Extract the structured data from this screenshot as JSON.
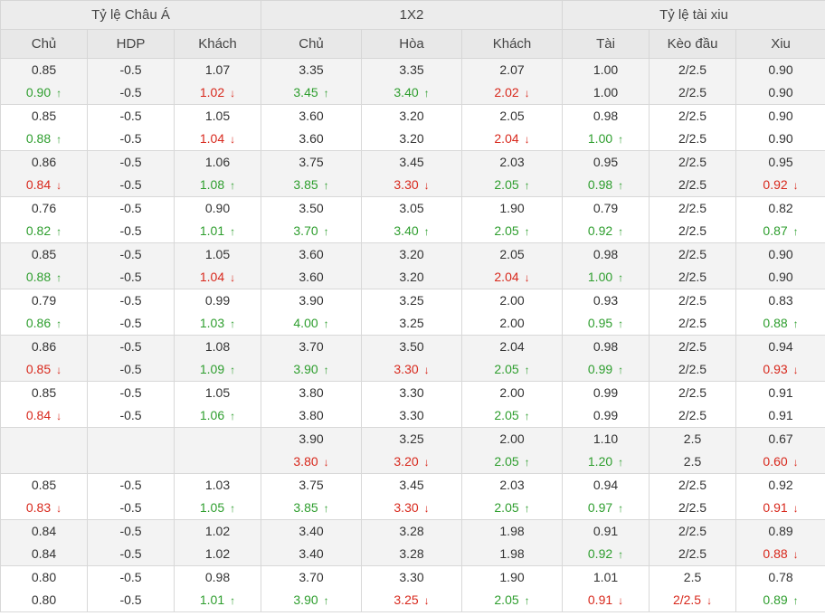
{
  "header": {
    "groups": [
      "Tỷ lệ Châu Á",
      "1X2",
      "Tỷ lệ tài xiu"
    ],
    "columns": [
      "Chủ",
      "HDP",
      "Khách",
      "Chủ",
      "Hòa",
      "Khách",
      "Tài",
      "Kèo đầu",
      "Xiu"
    ]
  },
  "arrows": {
    "up": "↑",
    "down": "↓"
  },
  "colors": {
    "up": "#2e9e2e",
    "down": "#d8281c",
    "header_bg": "#ececec",
    "alt_row_bg": "#f3f3f3"
  },
  "rows": [
    {
      "cells": [
        {
          "top": "0.85",
          "bottom": "0.90",
          "trend": "up"
        },
        {
          "top": "-0.5",
          "bottom": "-0.5"
        },
        {
          "top": "1.07",
          "bottom": "1.02",
          "trend": "down"
        },
        {
          "top": "3.35",
          "bottom": "3.45",
          "trend": "up"
        },
        {
          "top": "3.35",
          "bottom": "3.40",
          "trend": "up"
        },
        {
          "top": "2.07",
          "bottom": "2.02",
          "trend": "down"
        },
        {
          "top": "1.00",
          "bottom": "1.00"
        },
        {
          "top": "2/2.5",
          "bottom": "2/2.5"
        },
        {
          "top": "0.90",
          "bottom": "0.90"
        }
      ]
    },
    {
      "cells": [
        {
          "top": "0.85",
          "bottom": "0.88",
          "trend": "up"
        },
        {
          "top": "-0.5",
          "bottom": "-0.5"
        },
        {
          "top": "1.05",
          "bottom": "1.04",
          "trend": "down"
        },
        {
          "top": "3.60",
          "bottom": "3.60"
        },
        {
          "top": "3.20",
          "bottom": "3.20"
        },
        {
          "top": "2.05",
          "bottom": "2.04",
          "trend": "down"
        },
        {
          "top": "0.98",
          "bottom": "1.00",
          "trend": "up"
        },
        {
          "top": "2/2.5",
          "bottom": "2/2.5"
        },
        {
          "top": "0.90",
          "bottom": "0.90"
        }
      ]
    },
    {
      "cells": [
        {
          "top": "0.86",
          "bottom": "0.84",
          "trend": "down"
        },
        {
          "top": "-0.5",
          "bottom": "-0.5"
        },
        {
          "top": "1.06",
          "bottom": "1.08",
          "trend": "up"
        },
        {
          "top": "3.75",
          "bottom": "3.85",
          "trend": "up"
        },
        {
          "top": "3.45",
          "bottom": "3.30",
          "trend": "down"
        },
        {
          "top": "2.03",
          "bottom": "2.05",
          "trend": "up"
        },
        {
          "top": "0.95",
          "bottom": "0.98",
          "trend": "up"
        },
        {
          "top": "2/2.5",
          "bottom": "2/2.5"
        },
        {
          "top": "0.95",
          "bottom": "0.92",
          "trend": "down"
        }
      ]
    },
    {
      "cells": [
        {
          "top": "0.76",
          "bottom": "0.82",
          "trend": "up"
        },
        {
          "top": "-0.5",
          "bottom": "-0.5"
        },
        {
          "top": "0.90",
          "bottom": "1.01",
          "trend": "up"
        },
        {
          "top": "3.50",
          "bottom": "3.70",
          "trend": "up"
        },
        {
          "top": "3.05",
          "bottom": "3.40",
          "trend": "up"
        },
        {
          "top": "1.90",
          "bottom": "2.05",
          "trend": "up"
        },
        {
          "top": "0.79",
          "bottom": "0.92",
          "trend": "up"
        },
        {
          "top": "2/2.5",
          "bottom": "2/2.5"
        },
        {
          "top": "0.82",
          "bottom": "0.87",
          "trend": "up"
        }
      ]
    },
    {
      "cells": [
        {
          "top": "0.85",
          "bottom": "0.88",
          "trend": "up"
        },
        {
          "top": "-0.5",
          "bottom": "-0.5"
        },
        {
          "top": "1.05",
          "bottom": "1.04",
          "trend": "down"
        },
        {
          "top": "3.60",
          "bottom": "3.60"
        },
        {
          "top": "3.20",
          "bottom": "3.20"
        },
        {
          "top": "2.05",
          "bottom": "2.04",
          "trend": "down"
        },
        {
          "top": "0.98",
          "bottom": "1.00",
          "trend": "up"
        },
        {
          "top": "2/2.5",
          "bottom": "2/2.5"
        },
        {
          "top": "0.90",
          "bottom": "0.90"
        }
      ]
    },
    {
      "cells": [
        {
          "top": "0.79",
          "bottom": "0.86",
          "trend": "up"
        },
        {
          "top": "-0.5",
          "bottom": "-0.5"
        },
        {
          "top": "0.99",
          "bottom": "1.03",
          "trend": "up"
        },
        {
          "top": "3.90",
          "bottom": "4.00",
          "trend": "up"
        },
        {
          "top": "3.25",
          "bottom": "3.25"
        },
        {
          "top": "2.00",
          "bottom": "2.00"
        },
        {
          "top": "0.93",
          "bottom": "0.95",
          "trend": "up"
        },
        {
          "top": "2/2.5",
          "bottom": "2/2.5"
        },
        {
          "top": "0.83",
          "bottom": "0.88",
          "trend": "up"
        }
      ]
    },
    {
      "cells": [
        {
          "top": "0.86",
          "bottom": "0.85",
          "trend": "down"
        },
        {
          "top": "-0.5",
          "bottom": "-0.5"
        },
        {
          "top": "1.08",
          "bottom": "1.09",
          "trend": "up"
        },
        {
          "top": "3.70",
          "bottom": "3.90",
          "trend": "up"
        },
        {
          "top": "3.50",
          "bottom": "3.30",
          "trend": "down"
        },
        {
          "top": "2.04",
          "bottom": "2.05",
          "trend": "up"
        },
        {
          "top": "0.98",
          "bottom": "0.99",
          "trend": "up"
        },
        {
          "top": "2/2.5",
          "bottom": "2/2.5"
        },
        {
          "top": "0.94",
          "bottom": "0.93",
          "trend": "down"
        }
      ]
    },
    {
      "cells": [
        {
          "top": "0.85",
          "bottom": "0.84",
          "trend": "down"
        },
        {
          "top": "-0.5",
          "bottom": "-0.5"
        },
        {
          "top": "1.05",
          "bottom": "1.06",
          "trend": "up"
        },
        {
          "top": "3.80",
          "bottom": "3.80"
        },
        {
          "top": "3.30",
          "bottom": "3.30"
        },
        {
          "top": "2.00",
          "bottom": "2.05",
          "trend": "up"
        },
        {
          "top": "0.99",
          "bottom": "0.99"
        },
        {
          "top": "2/2.5",
          "bottom": "2/2.5"
        },
        {
          "top": "0.91",
          "bottom": "0.91"
        }
      ]
    },
    {
      "cells": [
        {
          "top": "",
          "bottom": ""
        },
        {
          "top": "",
          "bottom": ""
        },
        {
          "top": "",
          "bottom": ""
        },
        {
          "top": "3.90",
          "bottom": "3.80",
          "trend": "down"
        },
        {
          "top": "3.25",
          "bottom": "3.20",
          "trend": "down"
        },
        {
          "top": "2.00",
          "bottom": "2.05",
          "trend": "up"
        },
        {
          "top": "1.10",
          "bottom": "1.20",
          "trend": "up"
        },
        {
          "top": "2.5",
          "bottom": "2.5"
        },
        {
          "top": "0.67",
          "bottom": "0.60",
          "trend": "down"
        }
      ]
    },
    {
      "cells": [
        {
          "top": "0.85",
          "bottom": "0.83",
          "trend": "down"
        },
        {
          "top": "-0.5",
          "bottom": "-0.5"
        },
        {
          "top": "1.03",
          "bottom": "1.05",
          "trend": "up"
        },
        {
          "top": "3.75",
          "bottom": "3.85",
          "trend": "up"
        },
        {
          "top": "3.45",
          "bottom": "3.30",
          "trend": "down"
        },
        {
          "top": "2.03",
          "bottom": "2.05",
          "trend": "up"
        },
        {
          "top": "0.94",
          "bottom": "0.97",
          "trend": "up"
        },
        {
          "top": "2/2.5",
          "bottom": "2/2.5"
        },
        {
          "top": "0.92",
          "bottom": "0.91",
          "trend": "down"
        }
      ]
    },
    {
      "cells": [
        {
          "top": "0.84",
          "bottom": "0.84"
        },
        {
          "top": "-0.5",
          "bottom": "-0.5"
        },
        {
          "top": "1.02",
          "bottom": "1.02"
        },
        {
          "top": "3.40",
          "bottom": "3.40"
        },
        {
          "top": "3.28",
          "bottom": "3.28"
        },
        {
          "top": "1.98",
          "bottom": "1.98"
        },
        {
          "top": "0.91",
          "bottom": "0.92",
          "trend": "up"
        },
        {
          "top": "2/2.5",
          "bottom": "2/2.5"
        },
        {
          "top": "0.89",
          "bottom": "0.88",
          "trend": "down"
        }
      ]
    },
    {
      "cells": [
        {
          "top": "0.80",
          "bottom": "0.80"
        },
        {
          "top": "-0.5",
          "bottom": "-0.5"
        },
        {
          "top": "0.98",
          "bottom": "1.01",
          "trend": "up"
        },
        {
          "top": "3.70",
          "bottom": "3.90",
          "trend": "up"
        },
        {
          "top": "3.30",
          "bottom": "3.25",
          "trend": "down"
        },
        {
          "top": "1.90",
          "bottom": "2.05",
          "trend": "up"
        },
        {
          "top": "1.01",
          "bottom": "0.91",
          "trend": "down"
        },
        {
          "top": "2.5",
          "bottom": "2/2.5",
          "trend": "down"
        },
        {
          "top": "0.78",
          "bottom": "0.89",
          "trend": "up"
        }
      ]
    }
  ]
}
